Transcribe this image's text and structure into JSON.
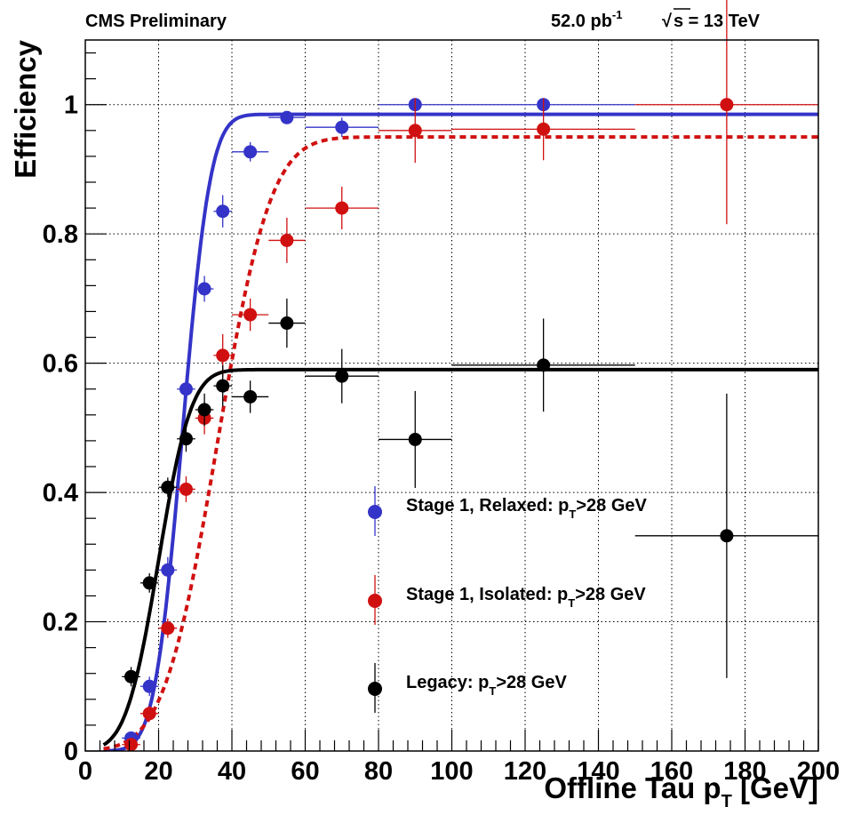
{
  "header": {
    "left": "CMS Preliminary",
    "lumi_value": "52.0 pb",
    "lumi_exp": "-1",
    "energy": "s = 13 TeV"
  },
  "chart_data": {
    "type": "scatter",
    "xlabel_main": "Offline Tau p",
    "xlabel_sub": "T",
    "xlabel_unit": " [GeV]",
    "ylabel": "Efficiency",
    "xlim": [
      0,
      200
    ],
    "ylim": [
      0,
      1.1
    ],
    "grid": true,
    "legend_position": "bottom-center",
    "x_ticks": [
      0,
      20,
      40,
      60,
      80,
      100,
      120,
      140,
      160,
      180,
      200
    ],
    "y_ticks": [
      0,
      0.2,
      0.4,
      0.6,
      0.8,
      1
    ],
    "x_tick_labels": [
      "0",
      "20",
      "40",
      "60",
      "80",
      "100",
      "120",
      "140",
      "160",
      "180",
      "200"
    ],
    "y_tick_labels": [
      "0",
      "0.2",
      "0.4",
      "0.6",
      "0.8",
      "1"
    ],
    "series": [
      {
        "key": "relaxed",
        "label_main": "Stage 1, Relaxed: p",
        "label_sub": "T",
        "label_tail": ">28 GeV",
        "color": "#3434c8",
        "fit_dashed": false,
        "fit": {
          "plateau": 0.985,
          "mu": 26.5,
          "sigma": 6.0
        },
        "points": [
          {
            "x": 12.5,
            "y": 0.02,
            "xerr": 2.5,
            "yerr": 0.01
          },
          {
            "x": 17.5,
            "y": 0.1,
            "xerr": 2.5,
            "yerr": 0.015
          },
          {
            "x": 22.5,
            "y": 0.28,
            "xerr": 2.5,
            "yerr": 0.02
          },
          {
            "x": 27.5,
            "y": 0.56,
            "xerr": 2.5,
            "yerr": 0.02
          },
          {
            "x": 32.5,
            "y": 0.715,
            "xerr": 2.5,
            "yerr": 0.02
          },
          {
            "x": 37.5,
            "y": 0.835,
            "xerr": 2.5,
            "yerr": 0.025
          },
          {
            "x": 45,
            "y": 0.927,
            "xerr": 5,
            "yerr": 0.015
          },
          {
            "x": 55,
            "y": 0.98,
            "xerr": 5,
            "yerr": 0.01
          },
          {
            "x": 70,
            "y": 0.965,
            "xerr": 10,
            "yerr": 0.015
          },
          {
            "x": 90,
            "y": 1.0,
            "xerr": 10,
            "yerr": 0.005
          },
          {
            "x": 125,
            "y": 1.0,
            "xerr": 25,
            "yerr": 0.005
          }
        ]
      },
      {
        "key": "isolated",
        "label_main": "Stage 1, Isolated: p",
        "label_sub": "T",
        "label_tail": ">28 GeV",
        "color": "#d01010",
        "fit_dashed": true,
        "fit": {
          "plateau": 0.95,
          "mu": 36.0,
          "sigma": 11.5
        },
        "points": [
          {
            "x": 12.5,
            "y": 0.01,
            "xerr": 2.5,
            "yerr": 0.008
          },
          {
            "x": 17.5,
            "y": 0.058,
            "xerr": 2.5,
            "yerr": 0.012
          },
          {
            "x": 22.5,
            "y": 0.19,
            "xerr": 2.5,
            "yerr": 0.015
          },
          {
            "x": 27.5,
            "y": 0.405,
            "xerr": 2.5,
            "yerr": 0.02
          },
          {
            "x": 32.5,
            "y": 0.515,
            "xerr": 2.5,
            "yerr": 0.025
          },
          {
            "x": 37.5,
            "y": 0.612,
            "xerr": 2.5,
            "yerr": 0.033
          },
          {
            "x": 45,
            "y": 0.675,
            "xerr": 5,
            "yerr": 0.025
          },
          {
            "x": 55,
            "y": 0.79,
            "xerr": 5,
            "yerr": 0.035
          },
          {
            "x": 70,
            "y": 0.84,
            "xerr": 10,
            "yerr": 0.033
          },
          {
            "x": 90,
            "y": 0.96,
            "xerr": 10,
            "yerr": 0.05
          },
          {
            "x": 125,
            "y": 0.962,
            "xerr": 25,
            "yerr": 0.048
          },
          {
            "x": 175,
            "y": 1.0,
            "xerr": 25,
            "yerr": 0.185
          }
        ]
      },
      {
        "key": "legacy",
        "label_main": "Legacy: p",
        "label_sub": "T",
        "label_tail": ">28 GeV",
        "color": "#000000",
        "fit_dashed": false,
        "fit": {
          "plateau": 0.59,
          "mu": 20.0,
          "sigma": 7.0
        },
        "points": [
          {
            "x": 12.5,
            "y": 0.115,
            "xerr": 2.5,
            "yerr": 0.015
          },
          {
            "x": 17.5,
            "y": 0.26,
            "xerr": 2.5,
            "yerr": 0.015
          },
          {
            "x": 22.5,
            "y": 0.408,
            "xerr": 2.5,
            "yerr": 0.015
          },
          {
            "x": 27.5,
            "y": 0.483,
            "xerr": 2.5,
            "yerr": 0.02
          },
          {
            "x": 32.5,
            "y": 0.528,
            "xerr": 2.5,
            "yerr": 0.025
          },
          {
            "x": 37.5,
            "y": 0.565,
            "xerr": 2.5,
            "yerr": 0.032
          },
          {
            "x": 45,
            "y": 0.548,
            "xerr": 5,
            "yerr": 0.025
          },
          {
            "x": 55,
            "y": 0.662,
            "xerr": 5,
            "yerr": 0.038
          },
          {
            "x": 70,
            "y": 0.58,
            "xerr": 10,
            "yerr": 0.042
          },
          {
            "x": 90,
            "y": 0.482,
            "xerr": 10,
            "yerr": 0.075
          },
          {
            "x": 125,
            "y": 0.597,
            "xerr": 25,
            "yerr": 0.072
          },
          {
            "x": 175,
            "y": 0.333,
            "xerr": 25,
            "yerr": 0.22
          }
        ]
      }
    ]
  }
}
